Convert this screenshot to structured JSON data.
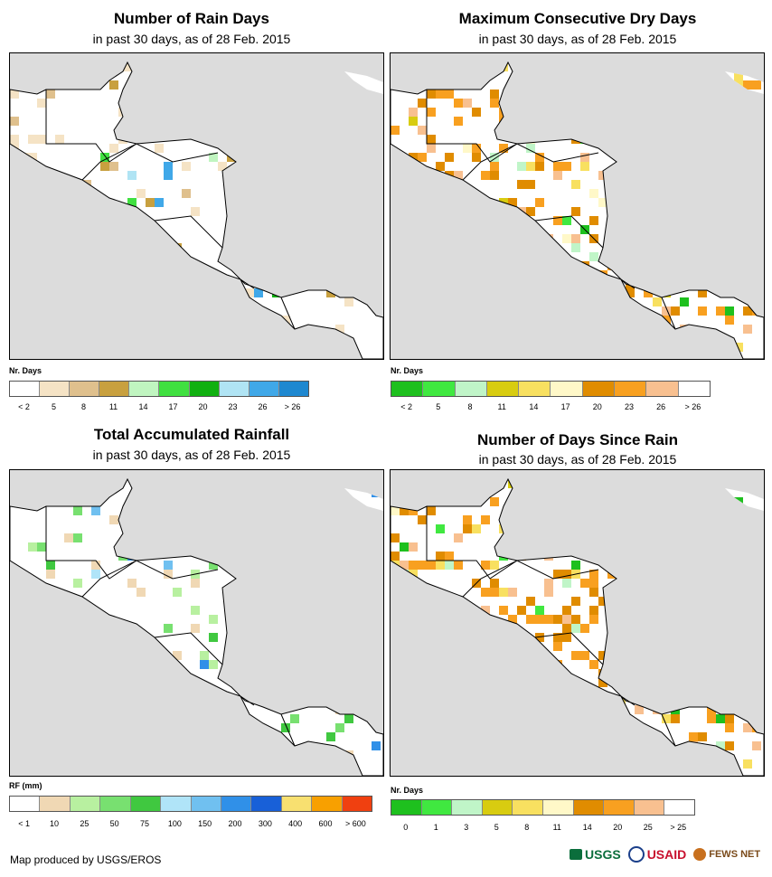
{
  "panels": [
    {
      "title": "Number of Rain Days",
      "subtitle": "in past 30 days, as of 28 Feb. 2015",
      "legend_title": "Nr. Days",
      "colors": [
        "#ffffff",
        "#f5e3c5",
        "#dfc08d",
        "#c8a03f",
        "#c0f5c0",
        "#40e040",
        "#10b010",
        "#b0e4f4",
        "#40a8e8",
        "#1e88d0"
      ],
      "tick_labels": [
        "< 2",
        "5",
        "8",
        "11",
        "14",
        "17",
        "20",
        "23",
        "26",
        "> 26"
      ]
    },
    {
      "title": "Maximum Consecutive Dry Days",
      "subtitle": "in past 30 days, as of 28 Feb. 2015",
      "legend_title": "Nr. Days",
      "colors": [
        "#1ec01e",
        "#40e840",
        "#c0f5c8",
        "#d8cc10",
        "#f8e060",
        "#fff8c8",
        "#e08c00",
        "#f8a020",
        "#f8c090",
        "#ffffff"
      ],
      "tick_labels": [
        "< 2",
        "5",
        "8",
        "11",
        "14",
        "17",
        "20",
        "23",
        "26",
        "> 26"
      ]
    },
    {
      "title": "Total Accumulated Rainfall",
      "subtitle": "in past 30 days, as of 28 Feb. 2015",
      "legend_title": "RF (mm)",
      "colors": [
        "#ffffff",
        "#f0d8b4",
        "#b8f0a0",
        "#78e070",
        "#40c840",
        "#b0e4f8",
        "#70c0f0",
        "#3090e8",
        "#1860d8",
        "#f8e070",
        "#f8a000",
        "#f04010"
      ],
      "tick_labels": [
        "< 1",
        "10",
        "25",
        "50",
        "75",
        "100",
        "150",
        "200",
        "300",
        "400",
        "600",
        "> 600"
      ]
    },
    {
      "title": "Number of Days Since Rain",
      "subtitle": "in past 30 days, as of 28 Feb. 2015",
      "legend_title": "Nr. Days",
      "colors": [
        "#1ec01e",
        "#40e840",
        "#c0f5c8",
        "#d8cc10",
        "#f8e060",
        "#fff8c8",
        "#e08c00",
        "#f8a020",
        "#f8c090",
        "#ffffff"
      ],
      "tick_labels": [
        "0",
        "1",
        "3",
        "5",
        "8",
        "11",
        "14",
        "20",
        "25",
        "> 25"
      ]
    }
  ],
  "footer": "Map produced by USGS/EROS",
  "logos": {
    "usgs": "USGS",
    "usaid": "USAID",
    "fews": "FEWS NET"
  },
  "colors": {
    "ocean": "#dcdcdc",
    "land": "#ffffff",
    "border": "#000000"
  }
}
